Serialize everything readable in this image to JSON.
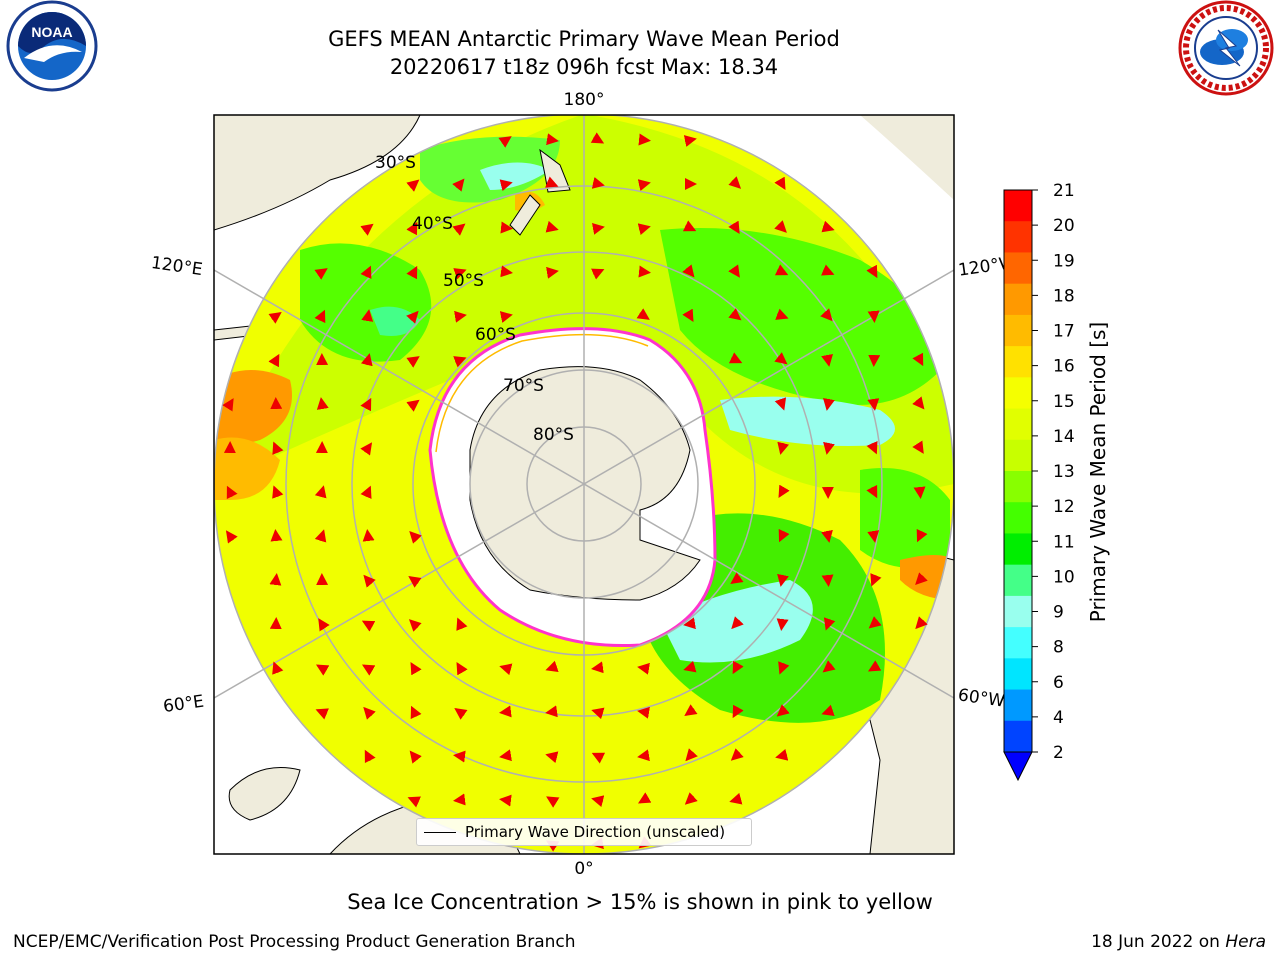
{
  "header": {
    "title_line1": "GEFS MEAN Antarctic Primary Wave Mean Period",
    "title_line2": "20220617 t18z 096h fcst   Max: 18.34"
  },
  "logos": {
    "left": "noara-logo",
    "left_text": "NOAA",
    "right": "national-weather-service-logo"
  },
  "map": {
    "projection": "south-polar-stereographic",
    "lon_labels": {
      "top": "180°",
      "bottom": "0°",
      "left_upper": "120°E",
      "left_lower": "60°E",
      "right_upper": "120°W",
      "right_lower": "60°W"
    },
    "lat_labels": [
      "30°S",
      "40°S",
      "50°S",
      "60°S",
      "70°S",
      "80°S"
    ],
    "legend_label": "Primary Wave Direction (unscaled)",
    "colors": {
      "land": "#efecdc",
      "sea_ice": "#ffffff",
      "ice_edge": "#ff33cc",
      "arrow": "#ee0000"
    }
  },
  "colorbar": {
    "label": "Primary Wave Mean Period [s]",
    "ticks": [
      "21",
      "20",
      "19",
      "18",
      "17",
      "16",
      "15",
      "14",
      "13",
      "12",
      "11",
      "10",
      "9",
      "8",
      "6",
      "4",
      "2"
    ],
    "colors": [
      "#ff0000",
      "#ff3300",
      "#ff6600",
      "#ff9900",
      "#ffbb00",
      "#ffe100",
      "#f5ff00",
      "#e1ff00",
      "#c8ff00",
      "#88ff00",
      "#44ff00",
      "#00ee00",
      "#44ff88",
      "#99ffee",
      "#44ffff",
      "#00e5ff",
      "#0099ff",
      "#0044ff"
    ],
    "extend_color": "#0000ff"
  },
  "footer": {
    "note": "Sea Ice Concentration > 15% is shown in pink to yellow",
    "left": "NCEP/EMC/Verification Post Processing Product Generation Branch",
    "right_date": "18 Jun 2022 on ",
    "right_host": "Hera"
  }
}
